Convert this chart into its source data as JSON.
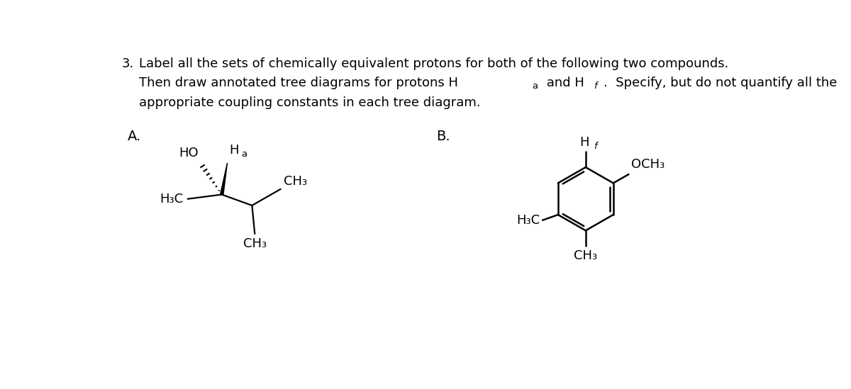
{
  "background_color": "#ffffff",
  "font_color": "#000000",
  "figsize": [
    12.0,
    5.49
  ],
  "dpi": 100,
  "xlim": [
    0,
    12.0
  ],
  "ylim": [
    0,
    5.49
  ],
  "title_line1": "Label all the sets of chemically equivalent protons for both of the following two compounds.",
  "title_line2_pre": "Then draw annotated tree diagrams for protons H",
  "title_line2_sub_a": "a",
  "title_line2_mid": " and H",
  "title_line2_sub_f": "f",
  "title_line2_post": ".  Specify, but do not quantify all the",
  "title_line3": "appropriate coupling constants in each tree diagram.",
  "label_A": "A.",
  "label_B": "B.",
  "num_label": "3.",
  "font_size_body": 13.0,
  "font_size_sub": 9.5,
  "font_size_mol": 13.0,
  "font_size_mol_sub": 9.5
}
